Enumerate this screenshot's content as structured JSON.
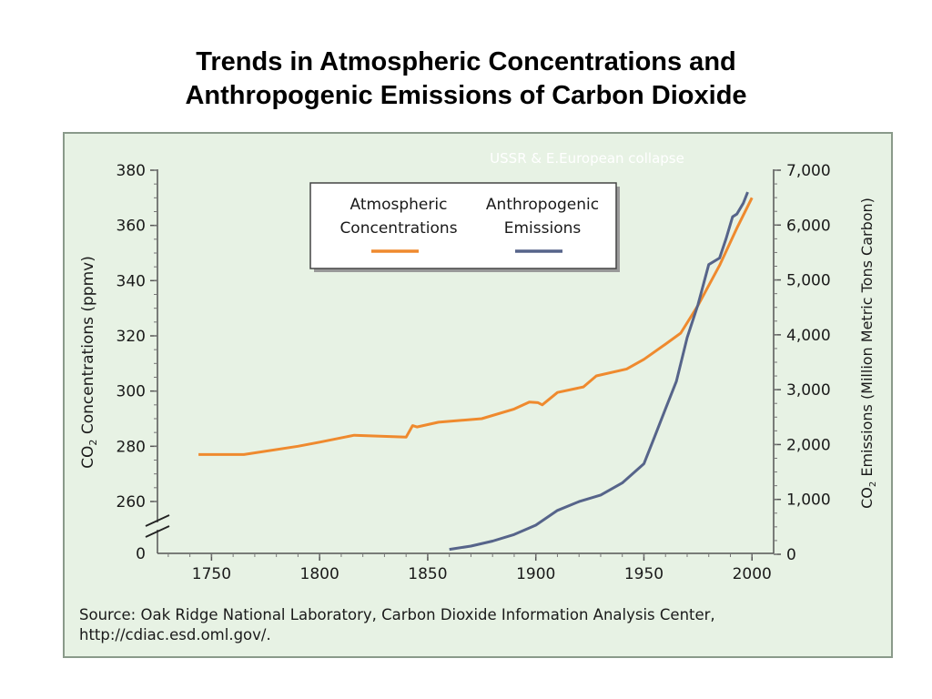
{
  "slide": {
    "title_line1": "Trends in Atmospheric Concentrations and",
    "title_line2": "Anthropogenic Emissions of Carbon Dioxide",
    "source_line1": "Source: Oak Ridge National Laboratory, Carbon Dioxide Information Analysis Center,",
    "source_line2": "http://cdiac.esd.oml.gov/."
  },
  "colors": {
    "panel_bg": "#e7f2e4",
    "panel_border": "#8a9a8a",
    "concentration_line": "#ef8a2e",
    "emissions_line": "#56648a",
    "annotation_text": "#ffffff"
  },
  "chart_data": {
    "type": "line",
    "annotation": "USSR & E.European collapse",
    "xlabel": "",
    "xlim": [
      1725,
      2010
    ],
    "x_ticks": [
      "1750",
      "1800",
      "1850",
      "1900",
      "1950",
      "2000"
    ],
    "y_left": {
      "label_prefix": "CO",
      "label_sub": "2",
      "label_suffix": " Concentrations (ppmv)",
      "ylim": [
        250,
        380
      ],
      "ticks": [
        "380",
        "360",
        "340",
        "320",
        "300",
        "280",
        "260"
      ],
      "break_label": "0"
    },
    "y_right": {
      "label_prefix": "CO",
      "label_sub": "2",
      "label_suffix": " Emissions (Million Metric Tons Carbon)",
      "ylim": [
        0,
        7000
      ],
      "ticks": [
        "7,000",
        "6,000",
        "5,000",
        "4,000",
        "3,000",
        "2,000",
        "1,000",
        "0"
      ]
    },
    "legend": {
      "placement": "top-center",
      "atmospheric_line1": "Atmospheric",
      "atmospheric_line2": "Concentrations",
      "anthropogenic_line1": "Anthropogenic",
      "anthropogenic_line2": "Emissions"
    },
    "series": [
      {
        "name": "Atmospheric Concentrations",
        "axis": "left",
        "x": [
          1744,
          1765,
          1790,
          1800,
          1816,
          1840,
          1843,
          1845,
          1855,
          1875,
          1890,
          1897,
          1901,
          1903,
          1910,
          1922,
          1928,
          1942,
          1950,
          1960,
          1967,
          1975,
          1985,
          1993,
          2000
        ],
        "y": [
          277,
          277,
          280,
          281.5,
          284,
          283.3,
          287.5,
          287,
          288.7,
          290,
          293.5,
          296,
          295.8,
          295,
          299.5,
          301.5,
          305.5,
          308,
          311.5,
          317,
          321,
          331,
          345.5,
          359,
          370
        ]
      },
      {
        "name": "Anthropogenic Emissions",
        "axis": "right",
        "x": [
          1860,
          1870,
          1880,
          1890,
          1900,
          1910,
          1920,
          1930,
          1940,
          1950,
          1955,
          1960,
          1965,
          1970,
          1975,
          1980,
          1985,
          1988,
          1991,
          1993,
          1996,
          1998
        ],
        "y": [
          90,
          150,
          240,
          360,
          530,
          800,
          960,
          1080,
          1300,
          1650,
          2150,
          2650,
          3150,
          3950,
          4550,
          5280,
          5400,
          5750,
          6150,
          6200,
          6400,
          6600
        ]
      }
    ]
  }
}
